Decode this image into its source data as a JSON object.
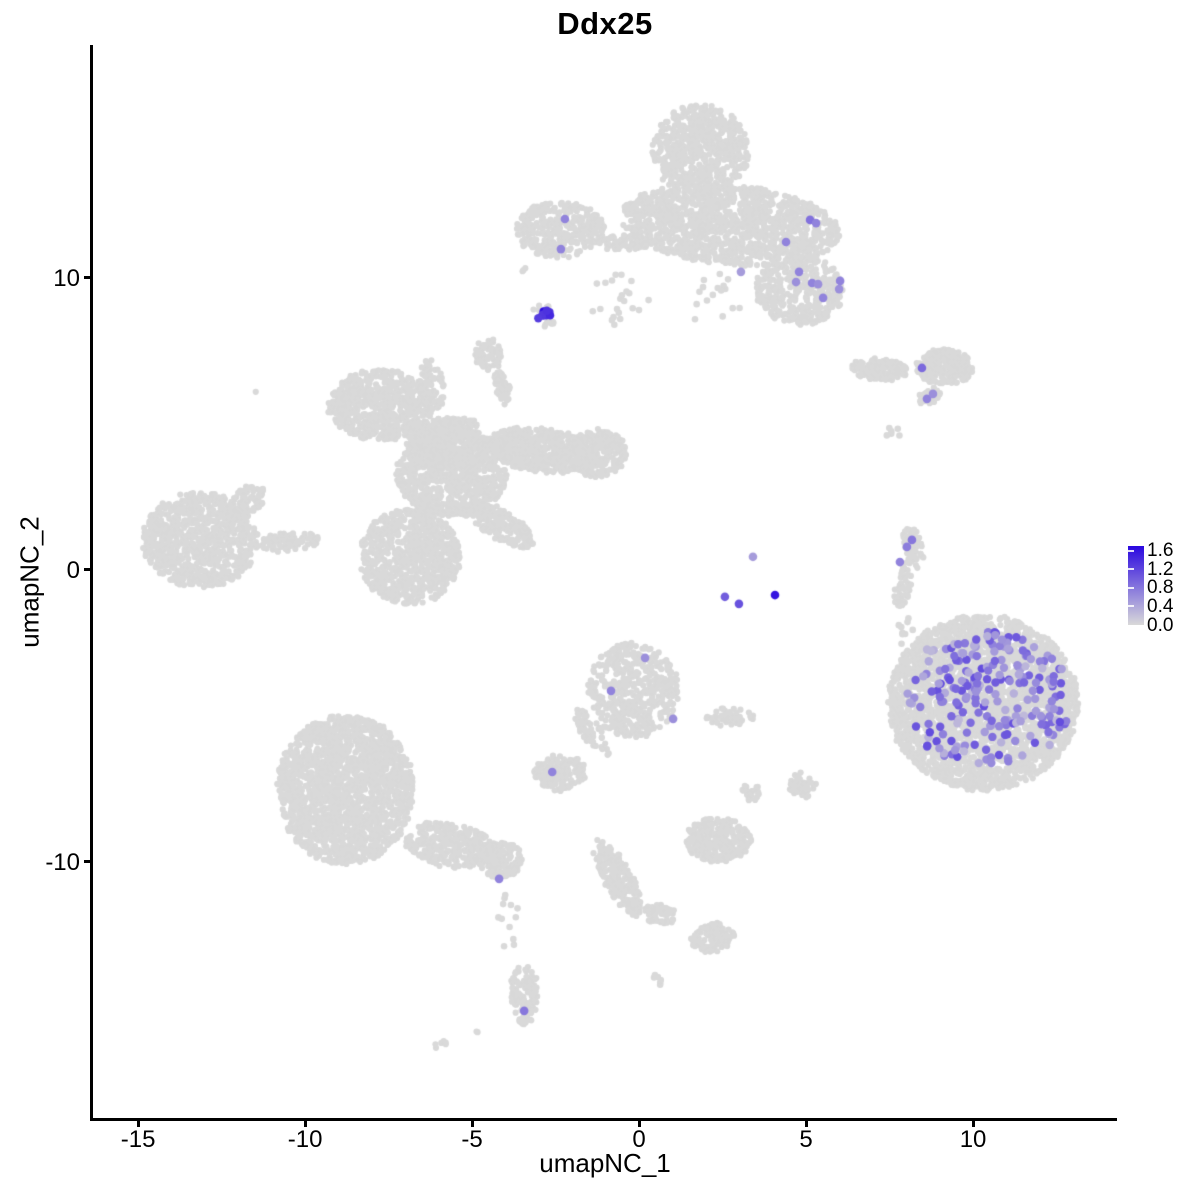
{
  "title": "Ddx25",
  "chart_data": {
    "type": "scatter",
    "subtype": "umap-feature-plot",
    "title": "Ddx25",
    "xlabel": "umapNC_1",
    "ylabel": "umapNC_2",
    "xlim": [
      -16.35,
      14.31
    ],
    "ylim": [
      -18.77,
      17.98
    ],
    "x_ticks": [
      -15,
      -10,
      -5,
      0,
      5,
      10
    ],
    "y_ticks": [
      10,
      0,
      -10
    ],
    "grid": false,
    "background_color": "#ffffff",
    "gray_point_color": "#d9d9d9",
    "legend": {
      "position": "right",
      "tick_labels": [
        "1.6",
        "1.2",
        "0.8",
        "0.4",
        "0.0"
      ],
      "tick_values": [
        1.6,
        1.2,
        0.8,
        0.4,
        0.0
      ],
      "vmax": 1.7,
      "low_color": "#d9d9d9",
      "high_color": "#2a08e0"
    },
    "cluster_fields": "x,y center in data coords; rx,ry radii; rot degrees; n points; s=1 sparse",
    "clusters": [
      {
        "x": 1.83,
        "y": 14.38,
        "rx": 1.44,
        "ry": 1.54,
        "rot": 0,
        "n": 650
      },
      {
        "x": 2.72,
        "y": 11.82,
        "rx": 3.29,
        "ry": 1.37,
        "rot": -6,
        "n": 1300
      },
      {
        "x": 4.82,
        "y": 9.59,
        "rx": 1.35,
        "ry": 1.2,
        "rot": 0,
        "n": 380
      },
      {
        "x": -2.37,
        "y": 11.64,
        "rx": 1.35,
        "ry": 0.96,
        "rot": 0,
        "n": 330
      },
      {
        "x": -0.42,
        "y": 11.2,
        "rx": 0.75,
        "ry": 0.27,
        "rot": 0,
        "n": 70
      },
      {
        "x": -0.57,
        "y": 9.25,
        "rx": 0.9,
        "ry": 1.0,
        "rot": 0,
        "n": 22,
        "s": 1
      },
      {
        "x": 2.28,
        "y": 9.25,
        "rx": 0.84,
        "ry": 0.96,
        "rot": 0,
        "n": 16,
        "s": 1
      },
      {
        "x": -2.87,
        "y": 8.7,
        "rx": 0.4,
        "ry": 0.45,
        "rot": 0,
        "n": 18
      },
      {
        "x": -3.5,
        "y": 10.38,
        "rx": 0.2,
        "ry": 0.2,
        "rot": 0,
        "n": 3
      },
      {
        "x": 7.22,
        "y": 6.88,
        "rx": 0.84,
        "ry": 0.38,
        "rot": -4,
        "n": 150
      },
      {
        "x": 9.16,
        "y": 6.95,
        "rx": 0.87,
        "ry": 0.62,
        "rot": 0,
        "n": 230
      },
      {
        "x": 8.71,
        "y": 5.96,
        "rx": 0.4,
        "ry": 0.25,
        "rot": 30,
        "n": 30
      },
      {
        "x": 7.6,
        "y": 4.73,
        "rx": 0.25,
        "ry": 0.3,
        "rot": 0,
        "n": 6,
        "s": 1
      },
      {
        "x": -4.52,
        "y": 7.36,
        "rx": 0.4,
        "ry": 0.55,
        "rot": 0,
        "n": 75
      },
      {
        "x": -4.1,
        "y": 6.23,
        "rx": 0.22,
        "ry": 0.62,
        "rot": 15,
        "n": 45
      },
      {
        "x": -7.75,
        "y": 5.65,
        "rx": 1.56,
        "ry": 1.2,
        "rot": 0,
        "n": 600
      },
      {
        "x": -5.9,
        "y": 4.38,
        "rx": 1.2,
        "ry": 0.8,
        "rot": 30,
        "n": 300
      },
      {
        "x": -5.6,
        "y": 3.36,
        "rx": 1.65,
        "ry": 1.54,
        "rot": 0,
        "n": 850
      },
      {
        "x": -2.96,
        "y": 4.11,
        "rx": 1.65,
        "ry": 0.75,
        "rot": -8,
        "n": 500
      },
      {
        "x": -1.23,
        "y": 4.01,
        "rx": 0.84,
        "ry": 0.82,
        "rot": 0,
        "n": 280
      },
      {
        "x": -6.86,
        "y": 0.45,
        "rx": 1.5,
        "ry": 1.64,
        "rot": 0,
        "n": 750
      },
      {
        "x": -4.16,
        "y": 1.54,
        "rx": 1.2,
        "ry": 0.48,
        "rot": -35,
        "n": 200
      },
      {
        "x": -6.2,
        "y": 6.34,
        "rx": 0.36,
        "ry": 0.86,
        "rot": 8,
        "n": 80
      },
      {
        "x": -13.14,
        "y": 1.03,
        "rx": 1.74,
        "ry": 1.64,
        "rot": 0,
        "n": 800
      },
      {
        "x": -11.71,
        "y": 2.4,
        "rx": 0.66,
        "ry": 0.41,
        "rot": 40,
        "n": 70
      },
      {
        "x": -10.45,
        "y": 0.96,
        "rx": 0.9,
        "ry": 0.34,
        "rot": 5,
        "n": 80
      },
      {
        "x": -0.18,
        "y": -4.11,
        "rx": 1.35,
        "ry": 1.64,
        "rot": 0,
        "n": 480
      },
      {
        "x": -1.41,
        "y": -5.58,
        "rx": 0.3,
        "ry": 0.96,
        "rot": 30,
        "n": 60
      },
      {
        "x": -2.37,
        "y": -6.95,
        "rx": 0.78,
        "ry": 0.62,
        "rot": 0,
        "n": 150
      },
      {
        "x": 2.72,
        "y": -5.03,
        "rx": 0.72,
        "ry": 0.31,
        "rot": 0,
        "n": 45
      },
      {
        "x": 3.32,
        "y": -7.6,
        "rx": 0.27,
        "ry": 0.41,
        "rot": 0,
        "n": 20
      },
      {
        "x": 4.88,
        "y": -7.4,
        "rx": 0.42,
        "ry": 0.45,
        "rot": 0,
        "n": 40
      },
      {
        "x": 10.3,
        "y": -4.55,
        "rx": 2.84,
        "ry": 3.01,
        "rot": 0,
        "n": 2700
      },
      {
        "x": 8.41,
        "y": -2.74,
        "rx": 0.9,
        "ry": 1.2,
        "rot": 0,
        "n": 14,
        "s": 1
      },
      {
        "x": -8.8,
        "y": -7.53,
        "rx": 2.04,
        "ry": 2.57,
        "rot": 0,
        "n": 1800
      },
      {
        "x": -5.66,
        "y": -9.42,
        "rx": 1.35,
        "ry": 0.75,
        "rot": -12,
        "n": 300
      },
      {
        "x": -4.16,
        "y": -9.93,
        "rx": 0.66,
        "ry": 0.62,
        "rot": 0,
        "n": 150
      },
      {
        "x": -3.95,
        "y": -12.05,
        "rx": 0.36,
        "ry": 1.03,
        "rot": 0,
        "n": 12,
        "s": 1
      },
      {
        "x": -3.44,
        "y": -14.55,
        "rx": 0.42,
        "ry": 1.03,
        "rot": 0,
        "n": 130
      },
      {
        "x": -4.82,
        "y": -15.75,
        "rx": 0.1,
        "ry": 0.1,
        "rot": 0,
        "n": 2
      },
      {
        "x": -5.96,
        "y": -16.23,
        "rx": 0.24,
        "ry": 0.15,
        "rot": 30,
        "n": 6
      },
      {
        "x": -0.63,
        "y": -10.55,
        "rx": 0.42,
        "ry": 1.44,
        "rot": 25,
        "n": 200
      },
      {
        "x": 0.63,
        "y": -11.81,
        "rx": 0.54,
        "ry": 0.31,
        "rot": -10,
        "n": 60
      },
      {
        "x": 2.19,
        "y": -12.6,
        "rx": 0.66,
        "ry": 0.48,
        "rot": 15,
        "n": 120
      },
      {
        "x": 0.54,
        "y": -14.04,
        "rx": 0.2,
        "ry": 0.18,
        "rot": 0,
        "n": 6,
        "s": 1
      },
      {
        "x": 2.37,
        "y": -9.25,
        "rx": 0.99,
        "ry": 0.75,
        "rot": 0,
        "n": 270
      },
      {
        "x": -11.44,
        "y": 6.1,
        "rx": 0.05,
        "ry": 0.05,
        "rot": 0,
        "n": 1
      },
      {
        "x": 7.9,
        "y": -0.51,
        "rx": 0.25,
        "ry": 0.8,
        "rot": -10,
        "n": 60
      },
      {
        "x": 8.2,
        "y": 0.79,
        "rx": 0.28,
        "ry": 0.72,
        "rot": 12,
        "n": 60
      },
      {
        "x": 7.93,
        "y": -1.98,
        "rx": 0.15,
        "ry": 0.25,
        "rot": 0,
        "n": 3,
        "s": 1
      }
    ],
    "expression_blobs": [
      {
        "x": -2.85,
        "y": 8.72,
        "rx": 0.4,
        "ry": 0.1,
        "rot": 35,
        "n": 9,
        "vmin": 1.25,
        "vmax": 1.7
      },
      {
        "x": 10.42,
        "y": -4.42,
        "rx": 2.5,
        "ry": 2.38,
        "rot": 0,
        "n": 225,
        "vmin": 0.25,
        "vmax": 1.15
      }
    ],
    "expression_point_fields": "[x, y, expression_value]",
    "expression_points": [
      [
        -2.22,
        12.02,
        0.7
      ],
      [
        -2.34,
        10.99,
        0.7
      ],
      [
        5.12,
        11.99,
        0.85
      ],
      [
        5.3,
        11.88,
        0.7
      ],
      [
        4.4,
        11.23,
        0.7
      ],
      [
        4.79,
        10.21,
        0.7
      ],
      [
        4.7,
        9.86,
        0.6
      ],
      [
        5.18,
        9.83,
        0.7
      ],
      [
        5.36,
        9.79,
        0.6
      ],
      [
        6.02,
        9.9,
        0.7
      ],
      [
        5.99,
        9.62,
        0.6
      ],
      [
        5.51,
        9.32,
        0.7
      ],
      [
        3.05,
        10.21,
        0.5
      ],
      [
        8.47,
        6.92,
        0.9
      ],
      [
        8.62,
        5.86,
        0.7
      ],
      [
        8.8,
        6.03,
        0.6
      ],
      [
        8.17,
        1.03,
        0.8
      ],
      [
        8.02,
        0.79,
        0.75
      ],
      [
        7.81,
        0.27,
        0.7
      ],
      [
        3.41,
        0.45,
        0.5
      ],
      [
        2.57,
        -0.92,
        1.0
      ],
      [
        2.99,
        -1.16,
        1.1
      ],
      [
        4.07,
        -0.86,
        1.6
      ],
      [
        0.18,
        -3.01,
        0.6
      ],
      [
        -0.84,
        -4.14,
        0.7
      ],
      [
        1.02,
        -5.1,
        0.6
      ],
      [
        -2.6,
        -6.92,
        0.7
      ],
      [
        -4.19,
        -10.58,
        0.7
      ],
      [
        -3.44,
        -15.1,
        0.8
      ]
    ]
  }
}
